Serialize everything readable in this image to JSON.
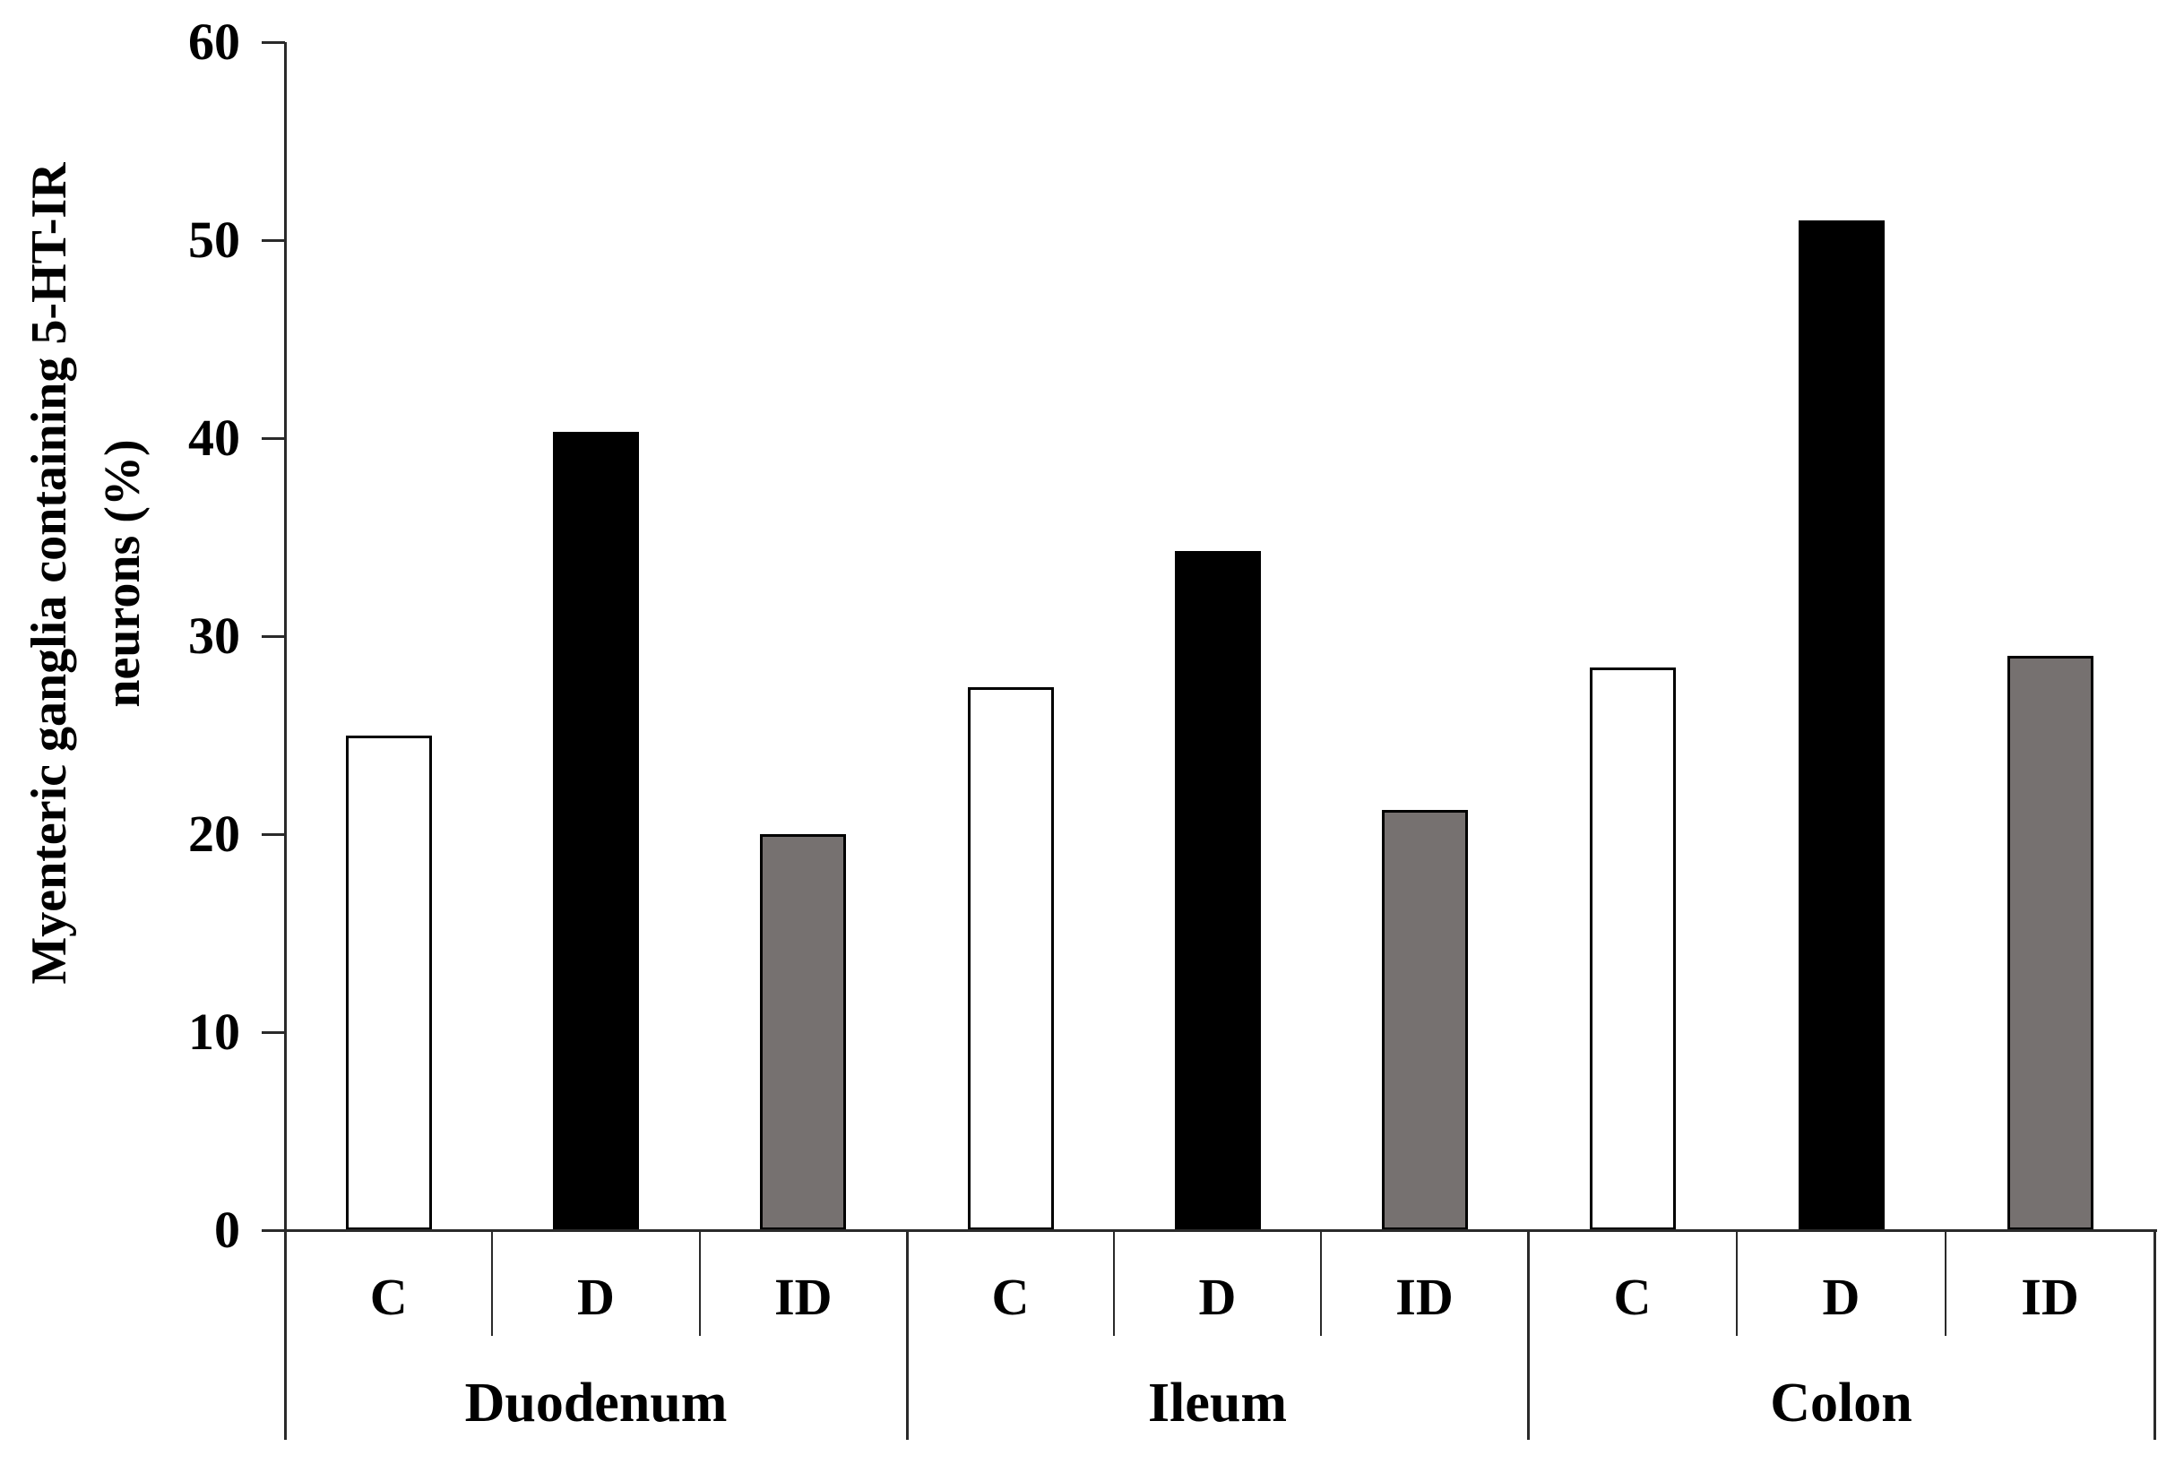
{
  "chart_data": {
    "type": "bar",
    "title": "",
    "ylabel": "Myenteric ganglia containing 5-HT-IR neurons (%)",
    "ylabel_lines": [
      "Myenteric ganglia containing 5-HT-IR",
      "neurons (%)"
    ],
    "xlabel": "",
    "ylim": [
      0,
      60
    ],
    "yticks": [
      0,
      10,
      20,
      30,
      40,
      50,
      60
    ],
    "grid": false,
    "legend_position": "none",
    "categories": [
      "Duodenum",
      "Ileum",
      "Colon"
    ],
    "conditions": [
      "C",
      "D",
      "ID"
    ],
    "series": [
      {
        "name": "C",
        "fill": "#ffffff",
        "values": [
          25.0,
          27.4,
          28.4
        ]
      },
      {
        "name": "D",
        "fill": "#000000",
        "values": [
          40.3,
          34.3,
          51.0
        ]
      },
      {
        "name": "ID",
        "fill": "#767170",
        "values": [
          20.0,
          21.2,
          29.0
        ]
      }
    ],
    "bar_border_color": "#000000",
    "axis_color": "#2a2a2a"
  }
}
